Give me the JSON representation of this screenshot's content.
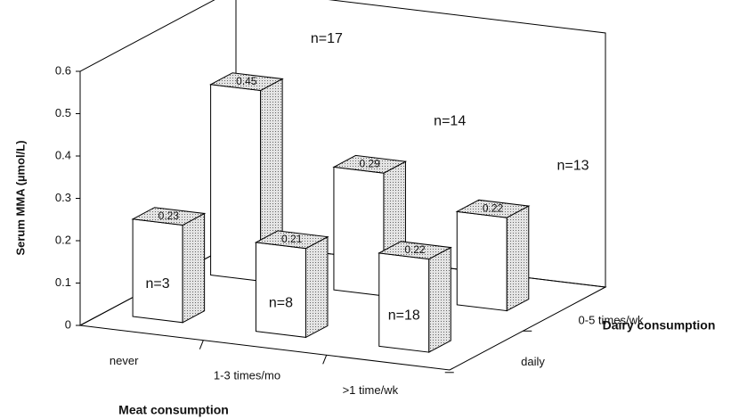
{
  "chart_data": {
    "type": "bar3d",
    "y_label": "Serum MMA (µmol/L)",
    "x_label": "Meat consumption",
    "z_label": "Dairy consumption",
    "categories": [
      "never",
      "1-3 times/mo",
      ">1 time/wk"
    ],
    "series": [
      {
        "name": "0-5 times/wk",
        "values": [
          0.45,
          0.29,
          0.22
        ],
        "annotations": [
          "n=17",
          "n=14",
          "n=13"
        ]
      },
      {
        "name": "daily",
        "values": [
          0.23,
          0.21,
          0.22
        ],
        "annotations": [
          "n=3",
          "n=8",
          "n=18"
        ]
      }
    ],
    "ylim": [
      0,
      0.6
    ],
    "yticks": [
      0,
      0.1,
      0.2,
      0.3,
      0.4,
      0.5,
      0.6
    ]
  }
}
